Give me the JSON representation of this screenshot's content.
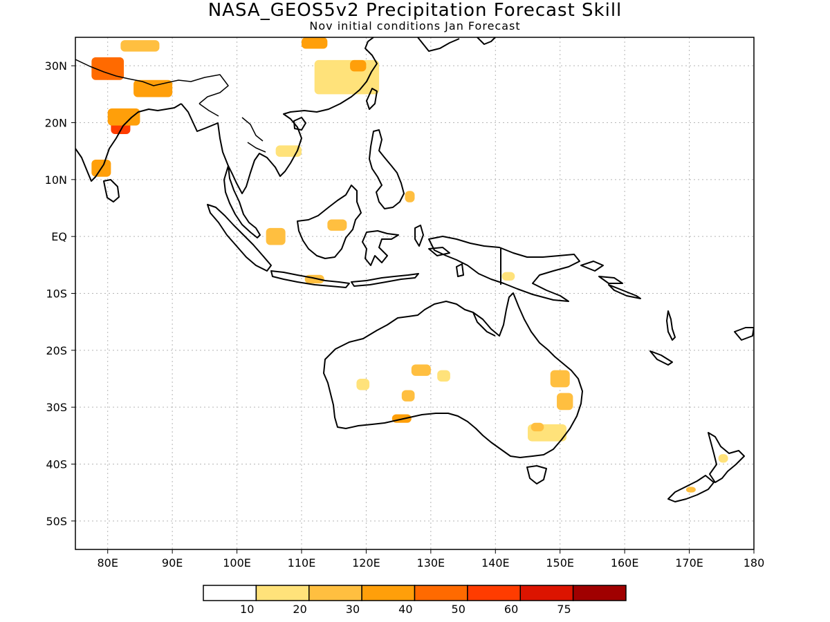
{
  "header": {
    "title": "NASA_GEOS5v2 Precipitation Forecast Skill",
    "subtitle": "Nov initial conditions  Jan Forecast"
  },
  "map": {
    "lon_range": [
      75,
      180
    ],
    "lat_range": [
      -55,
      35
    ],
    "lon_ticks": [
      {
        "value": 80,
        "label": "80E"
      },
      {
        "value": 90,
        "label": "90E"
      },
      {
        "value": 100,
        "label": "100E"
      },
      {
        "value": 110,
        "label": "110E"
      },
      {
        "value": 120,
        "label": "120E"
      },
      {
        "value": 130,
        "label": "130E"
      },
      {
        "value": 140,
        "label": "140E"
      },
      {
        "value": 150,
        "label": "150E"
      },
      {
        "value": 160,
        "label": "160E"
      },
      {
        "value": 170,
        "label": "170E"
      },
      {
        "value": 180,
        "label": "180"
      }
    ],
    "lat_ticks": [
      {
        "value": 30,
        "label": "30N"
      },
      {
        "value": 20,
        "label": "20N"
      },
      {
        "value": 10,
        "label": "10N"
      },
      {
        "value": 0,
        "label": "EQ"
      },
      {
        "value": -10,
        "label": "10S"
      },
      {
        "value": -20,
        "label": "20S"
      },
      {
        "value": -30,
        "label": "30S"
      },
      {
        "value": -40,
        "label": "40S"
      },
      {
        "value": -50,
        "label": "50S"
      }
    ],
    "grid": "dotted"
  },
  "colorbar": {
    "labels": [
      "10",
      "20",
      "30",
      "40",
      "50",
      "60",
      "75"
    ],
    "colors": [
      "#ffffff",
      "#ffe27a",
      "#ffbf40",
      "#ff9f0a",
      "#ff6a00",
      "#ff3c00",
      "#dc1400",
      "#a00000"
    ]
  },
  "skill_regions": [
    {
      "lon": 77.5,
      "lat": 29.5,
      "w": 5,
      "h": 4,
      "level": 4
    },
    {
      "lon": 84,
      "lat": 26,
      "w": 6,
      "h": 3,
      "level": 3
    },
    {
      "lon": 80.5,
      "lat": 19.5,
      "w": 3,
      "h": 3,
      "level": 5
    },
    {
      "lon": 80,
      "lat": 21,
      "w": 5,
      "h": 3,
      "level": 3
    },
    {
      "lon": 77.5,
      "lat": 12,
      "w": 3,
      "h": 3,
      "level": 3
    },
    {
      "lon": 82,
      "lat": 33.5,
      "w": 6,
      "h": 2,
      "level": 2
    },
    {
      "lon": 110,
      "lat": 34,
      "w": 4,
      "h": 2,
      "level": 3
    },
    {
      "lon": 112,
      "lat": 28,
      "w": 10,
      "h": 6,
      "level": 1
    },
    {
      "lon": 117.5,
      "lat": 30,
      "w": 2.5,
      "h": 2,
      "level": 3
    },
    {
      "lon": 106,
      "lat": 15,
      "w": 4,
      "h": 2,
      "level": 1
    },
    {
      "lon": 104.5,
      "lat": 0,
      "w": 3,
      "h": 3,
      "level": 2
    },
    {
      "lon": 114,
      "lat": 2,
      "w": 3,
      "h": 2,
      "level": 2
    },
    {
      "lon": 110.5,
      "lat": -7.5,
      "w": 3,
      "h": 1.5,
      "level": 2
    },
    {
      "lon": 126,
      "lat": 7,
      "w": 1.5,
      "h": 2,
      "level": 2
    },
    {
      "lon": 141,
      "lat": -7,
      "w": 2,
      "h": 1.5,
      "level": 1
    },
    {
      "lon": 127,
      "lat": -23.5,
      "w": 3,
      "h": 2,
      "level": 2
    },
    {
      "lon": 131,
      "lat": -24.5,
      "w": 2,
      "h": 2,
      "level": 1
    },
    {
      "lon": 125.5,
      "lat": -28,
      "w": 2,
      "h": 2,
      "level": 2
    },
    {
      "lon": 124,
      "lat": -32,
      "w": 3,
      "h": 1.5,
      "level": 3
    },
    {
      "lon": 148.5,
      "lat": -25,
      "w": 3,
      "h": 3,
      "level": 2
    },
    {
      "lon": 149.5,
      "lat": -29,
      "w": 2.5,
      "h": 3,
      "level": 2
    },
    {
      "lon": 145,
      "lat": -34.5,
      "w": 6,
      "h": 3,
      "level": 1
    },
    {
      "lon": 145.5,
      "lat": -33.5,
      "w": 2,
      "h": 1.5,
      "level": 2
    },
    {
      "lon": 118.5,
      "lat": -26,
      "w": 2,
      "h": 2,
      "level": 1
    },
    {
      "lon": 174.5,
      "lat": -39,
      "w": 1.5,
      "h": 1.5,
      "level": 1
    },
    {
      "lon": 169.5,
      "lat": -44.5,
      "w": 1.5,
      "h": 1,
      "level": 2
    }
  ]
}
